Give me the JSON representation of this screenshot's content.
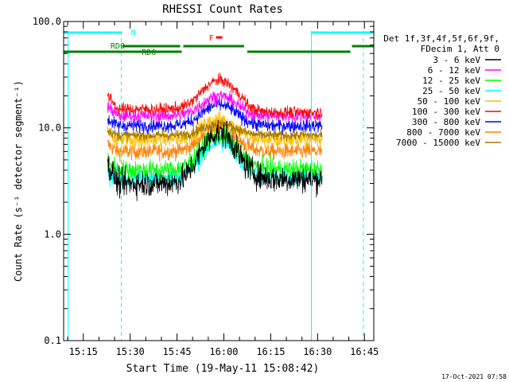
{
  "chart_data": {
    "type": "line",
    "title": "RHESSI Count Rates",
    "xlabel": "Start Time (19-May-11 15:08:42)",
    "ylabel": "Count Rate (s⁻¹ detector segment⁻¹)",
    "y_scale": "log",
    "ylim": [
      0.1,
      100
    ],
    "xlim": [
      "15:08:42",
      "16:48:00"
    ],
    "x_ticks": [
      "15:15",
      "15:30",
      "15:45",
      "16:00",
      "16:15",
      "16:30",
      "16:45"
    ],
    "y_ticks": [
      "0.1",
      "1.0",
      "10.0",
      "100.0"
    ],
    "grid": false,
    "legend_header": [
      "Det 1f,3f,4f,5f,6f,9f,",
      "FDecim 1, Att 0"
    ],
    "legend_position": "right",
    "timestamp": "17-Oct-2021 07:58",
    "data_gaps": [
      [
        "15:08:42",
        "15:22:45"
      ],
      [
        "16:31:30",
        "16:48:00"
      ]
    ],
    "series": [
      {
        "name": "3 - 6 keV",
        "color": "#000000",
        "pre": 4.5,
        "base": 3.0,
        "peak": 9.0,
        "post": 3.3,
        "jitter": 0.8
      },
      {
        "name": "6 - 12 keV",
        "color": "#ff00ff",
        "pre": 16,
        "base": 13,
        "peak": 20,
        "post": 13,
        "jitter": 0.4
      },
      {
        "name": "12 - 25 keV",
        "color": "#00ff00",
        "pre": 5.0,
        "base": 4.0,
        "peak": 8.5,
        "post": 4.1,
        "jitter": 0.6
      },
      {
        "name": "25 - 50 keV",
        "color": "#00ffff",
        "pre": 3.8,
        "base": 3.4,
        "peak": 7.5,
        "post": 3.5,
        "jitter": 0.6
      },
      {
        "name": "50 - 100 keV",
        "color": "#ffbf00",
        "pre": 9.0,
        "base": 7.8,
        "peak": 12,
        "post": 7.8,
        "jitter": 0.5
      },
      {
        "name": "100 - 300 keV",
        "color": "#ff0000",
        "pre": 20,
        "base": 15,
        "peak": 28,
        "post": 14,
        "jitter": 0.35
      },
      {
        "name": "300 - 800 keV",
        "color": "#0000ff",
        "pre": 12,
        "base": 10.5,
        "peak": 16.5,
        "post": 10.5,
        "jitter": 0.4
      },
      {
        "name": "800 - 7000 keV",
        "color": "#ff8000",
        "pre": 7.0,
        "base": 6.0,
        "peak": 10,
        "post": 6.0,
        "jitter": 0.5
      },
      {
        "name": "7000 - 15000 keV",
        "color": "#a07800",
        "pre": 9.5,
        "base": 8.5,
        "peak": 11,
        "post": 8.5,
        "jitter": 0.3
      }
    ],
    "flags": [
      {
        "label": "N",
        "color": "#00ffff",
        "spans": [
          [
            "15:08:42",
            "15:27:00"
          ],
          [
            "16:28:00",
            "16:48:00"
          ]
        ]
      },
      {
        "label": "F",
        "color": "#ff0000",
        "spans": [
          [
            "15:57:30",
            "15:59:30"
          ]
        ]
      },
      {
        "label": "RD0",
        "color": "#008000",
        "spans": [
          [
            "15:08:42",
            "15:46:30"
          ],
          [
            "16:07:30",
            "16:40:30"
          ]
        ]
      },
      {
        "label": "RD6",
        "color": "#008000",
        "spans": [
          [
            "15:27:30",
            "15:46:00"
          ],
          [
            "15:47:00",
            "16:06:30"
          ],
          [
            "16:41:00",
            "16:48:00"
          ]
        ]
      }
    ],
    "vlines": [
      {
        "time": "15:10:10",
        "color": "#00ffff",
        "style": "solid"
      },
      {
        "time": "15:27:10",
        "color": "#00ffff",
        "style": "dashed"
      },
      {
        "time": "16:28:00",
        "color": "#00ffff",
        "style": "solid"
      },
      {
        "time": "16:44:40",
        "color": "#00ffff",
        "style": "dashed"
      }
    ]
  }
}
